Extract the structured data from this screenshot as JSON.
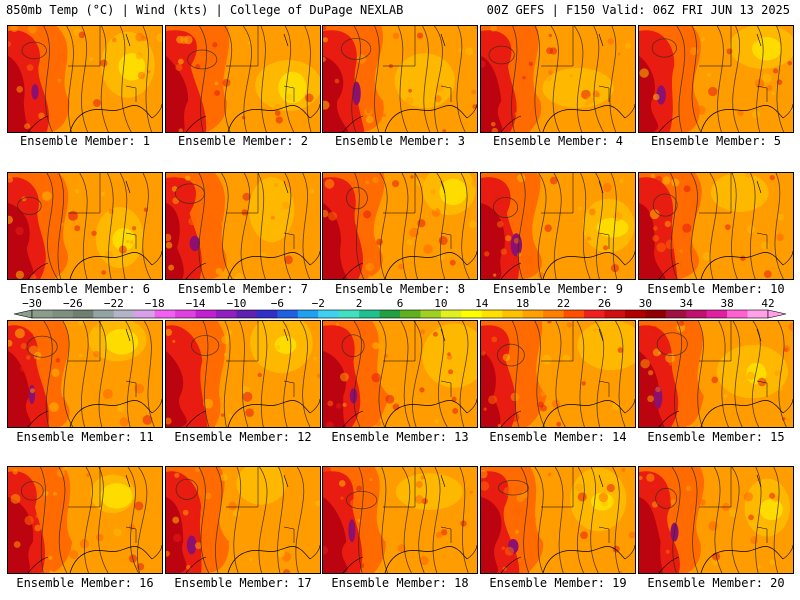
{
  "header": {
    "left": "850mb Temp (°C) | Wind (kts) | College of DuPage NEXLAB",
    "right": "00Z GEFS | F150 Valid: 06Z FRI JUN 13 2025"
  },
  "label_prefix": "Ensemble Member: ",
  "members": [
    1,
    2,
    3,
    4,
    5,
    6,
    7,
    8,
    9,
    10,
    11,
    12,
    13,
    14,
    15,
    16,
    17,
    18,
    19,
    20
  ],
  "colorbar": {
    "tick_labels": [
      "-30",
      "-26",
      "-22",
      "-18",
      "-14",
      "-10",
      "-6",
      "-2",
      "2",
      "6",
      "10",
      "14",
      "18",
      "22",
      "26",
      "30",
      "34",
      "38",
      "42"
    ],
    "colors": [
      "#8c9c8c",
      "#7e8e80",
      "#708070",
      "#94a4a4",
      "#b4b4c8",
      "#d8a0e8",
      "#f060f0",
      "#e040e0",
      "#c020d0",
      "#9020c0",
      "#6020b0",
      "#3030c8",
      "#2060e0",
      "#20a0f0",
      "#40d0f0",
      "#40e0c0",
      "#20c090",
      "#20a040",
      "#60b020",
      "#a0d020",
      "#e0f020",
      "#ffff00",
      "#ffe000",
      "#ffc000",
      "#ffa000",
      "#ff8000",
      "#ff5000",
      "#f02020",
      "#d01010",
      "#b00000",
      "#900000",
      "#a01040",
      "#c01070",
      "#e020a0",
      "#ff60d0",
      "#ffa0e8"
    ]
  },
  "map_colors": {
    "background": "#ff9c00",
    "light": "#ffbb00",
    "yellow": "#ffe200",
    "mid": "#ff6600",
    "red": "#e81c10",
    "dark": "#b40010",
    "purple": "#8c1070",
    "contour": "#3a2a14"
  }
}
